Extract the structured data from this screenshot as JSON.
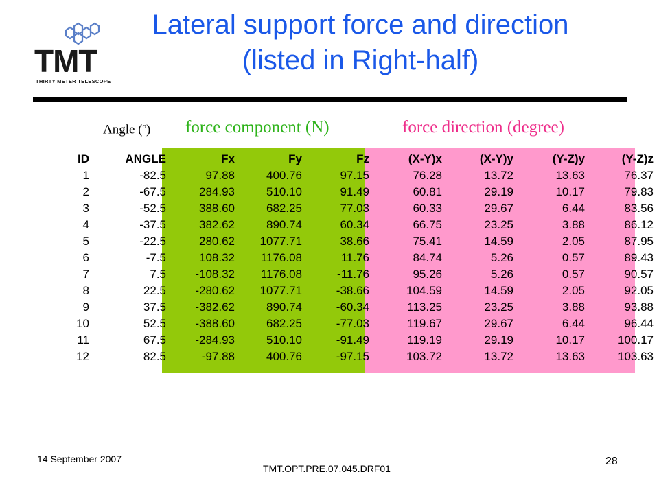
{
  "logo": {
    "mark": "TMT",
    "subtitle": "THIRTY METER TELESCOPE"
  },
  "title": {
    "line1": "Lateral support force and direction",
    "line2": "(listed in Right-half)"
  },
  "headers": {
    "angle_label": "Angle (",
    "angle_unit": "o",
    "angle_close": ")",
    "force_component": "force component (N)",
    "force_direction": "force direction (degree)"
  },
  "colors": {
    "title": "#1a58e8",
    "component_header": "#2eb31a",
    "direction_header": "#ee2d8a",
    "green_band": "#93c90a",
    "pink_band": "#ff99cc"
  },
  "table": {
    "columns": [
      "ID",
      "ANGLE",
      "Fx",
      "Fy",
      "Fz",
      "(X-Y)x",
      "(X-Y)y",
      "(Y-Z)y",
      "(Y-Z)z"
    ],
    "rows": [
      [
        "1",
        "-82.5",
        "97.88",
        "400.76",
        "97.15",
        "76.28",
        "13.72",
        "13.63",
        "76.37"
      ],
      [
        "2",
        "-67.5",
        "284.93",
        "510.10",
        "91.49",
        "60.81",
        "29.19",
        "10.17",
        "79.83"
      ],
      [
        "3",
        "-52.5",
        "388.60",
        "682.25",
        "77.03",
        "60.33",
        "29.67",
        "6.44",
        "83.56"
      ],
      [
        "4",
        "-37.5",
        "382.62",
        "890.74",
        "60.34",
        "66.75",
        "23.25",
        "3.88",
        "86.12"
      ],
      [
        "5",
        "-22.5",
        "280.62",
        "1077.71",
        "38.66",
        "75.41",
        "14.59",
        "2.05",
        "87.95"
      ],
      [
        "6",
        "-7.5",
        "108.32",
        "1176.08",
        "11.76",
        "84.74",
        "5.26",
        "0.57",
        "89.43"
      ],
      [
        "7",
        "7.5",
        "-108.32",
        "1176.08",
        "-11.76",
        "95.26",
        "5.26",
        "0.57",
        "90.57"
      ],
      [
        "8",
        "22.5",
        "-280.62",
        "1077.71",
        "-38.66",
        "104.59",
        "14.59",
        "2.05",
        "92.05"
      ],
      [
        "9",
        "37.5",
        "-382.62",
        "890.74",
        "-60.34",
        "113.25",
        "23.25",
        "3.88",
        "93.88"
      ],
      [
        "10",
        "52.5",
        "-388.60",
        "682.25",
        "-77.03",
        "119.67",
        "29.67",
        "6.44",
        "96.44"
      ],
      [
        "11",
        "67.5",
        "-284.93",
        "510.10",
        "-91.49",
        "119.19",
        "29.19",
        "10.17",
        "100.17"
      ],
      [
        "12",
        "82.5",
        "-97.88",
        "400.76",
        "-97.15",
        "103.72",
        "13.72",
        "13.63",
        "103.63"
      ]
    ]
  },
  "footer": {
    "date": "14 September 2007",
    "doc_id": "TMT.OPT.PRE.07.045.DRF01",
    "page": "28"
  }
}
